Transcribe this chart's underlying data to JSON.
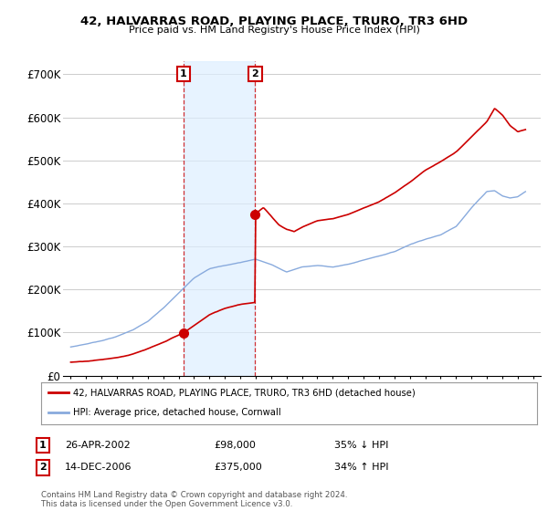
{
  "title": "42, HALVARRAS ROAD, PLAYING PLACE, TRURO, TR3 6HD",
  "subtitle": "Price paid vs. HM Land Registry's House Price Index (HPI)",
  "sale1_date": "26-APR-2002",
  "sale1_price": 98000,
  "sale1_hpi": "35% ↓ HPI",
  "sale2_date": "14-DEC-2006",
  "sale2_price": 375000,
  "sale2_hpi": "34% ↑ HPI",
  "legend_line1": "42, HALVARRAS ROAD, PLAYING PLACE, TRURO, TR3 6HD (detached house)",
  "legend_line2": "HPI: Average price, detached house, Cornwall",
  "footnote": "Contains HM Land Registry data © Crown copyright and database right 2024.\nThis data is licensed under the Open Government Licence v3.0.",
  "line_color_red": "#cc0000",
  "line_color_blue": "#88aadd",
  "background_color": "#ffffff",
  "grid_color": "#cccccc",
  "shade_color": "#ddeeff",
  "ylim": [
    0,
    730000
  ],
  "yticks": [
    0,
    100000,
    200000,
    300000,
    400000,
    500000,
    600000,
    700000
  ],
  "ytick_labels": [
    "£0",
    "£100K",
    "£200K",
    "£300K",
    "£400K",
    "£500K",
    "£600K",
    "£700K"
  ],
  "sale1_year": 2002.32,
  "sale2_year": 2006.96
}
